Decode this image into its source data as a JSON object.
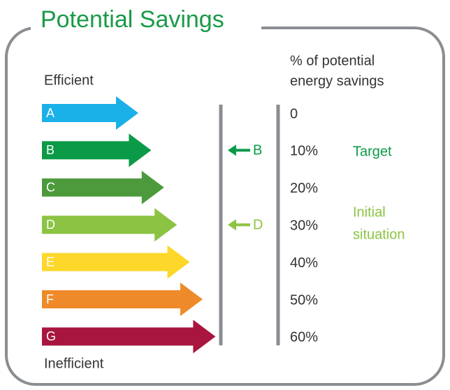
{
  "title": "Potential Savings",
  "left_labels": {
    "top": "Efficient",
    "bottom": "Inefficient"
  },
  "classes": [
    {
      "label": "A",
      "color": "#1ab0e8"
    },
    {
      "label": "B",
      "color": "#0b9a48"
    },
    {
      "label": "C",
      "color": "#4c9a3c"
    },
    {
      "label": "D",
      "color": "#8bc443"
    },
    {
      "label": "E",
      "color": "#fdd82a"
    },
    {
      "label": "F",
      "color": "#ef8a2a"
    },
    {
      "label": "G",
      "color": "#a8163f"
    }
  ],
  "scale": {
    "header": [
      "% of potential",
      "energy savings"
    ],
    "levels": [
      "0",
      "10%",
      "20%",
      "30%",
      "40%",
      "50%",
      "60%"
    ]
  },
  "markers": [
    {
      "label": "B",
      "color": "#0b9a48"
    },
    {
      "label": "D",
      "color": "#8bc443"
    }
  ],
  "notes": [
    {
      "lines": [
        "Target"
      ],
      "color": "#0b9a48"
    },
    {
      "lines": [
        "Initial",
        "situation"
      ],
      "color": "#8bc443"
    }
  ]
}
